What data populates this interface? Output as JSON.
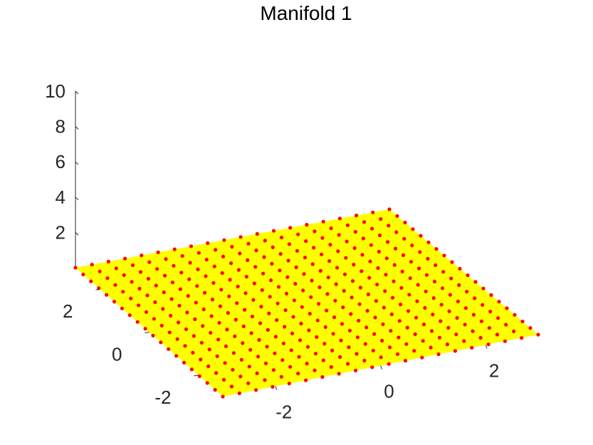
{
  "chart_data": {
    "type": "surface3d",
    "title": "Manifold 1",
    "x_range": [
      -3,
      3
    ],
    "y_range": [
      -3,
      3
    ],
    "z_limits": [
      0,
      10
    ],
    "z_value": 1,
    "grid_points_per_side": 20,
    "z_ticks": [
      "2",
      "4",
      "6",
      "8",
      "10"
    ],
    "x_ticks": [
      "-2",
      "0",
      "2"
    ],
    "y_ticks": [
      "-2",
      "0",
      "2"
    ],
    "surface_color": "#ffff00",
    "marker_color": "#ff0000",
    "grid": false
  }
}
